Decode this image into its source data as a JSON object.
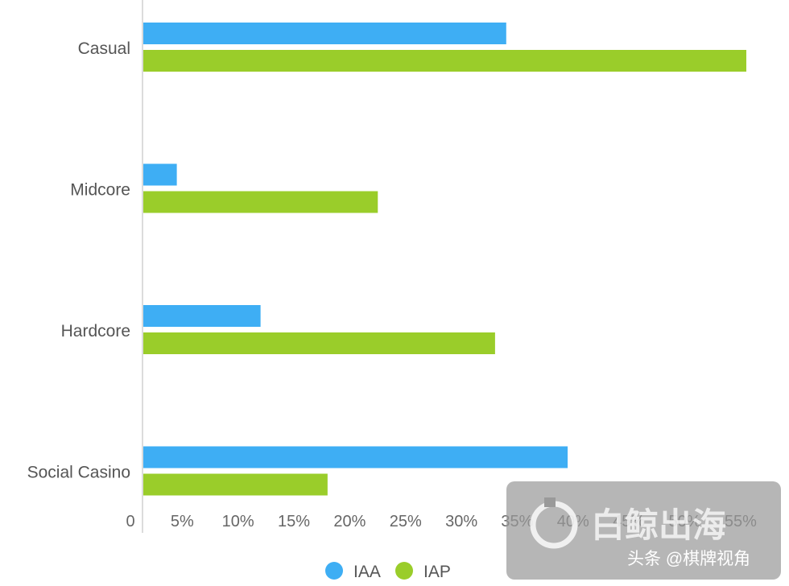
{
  "chart_data": {
    "type": "bar",
    "orientation": "horizontal",
    "categories": [
      "Casual",
      "Midcore",
      "Hardcore",
      "Social Casino"
    ],
    "series": [
      {
        "name": "IAA",
        "color": "#3EAEF4",
        "values": [
          32.5,
          3.0,
          10.5,
          38.0
        ]
      },
      {
        "name": "IAP",
        "color": "#9ACD2A",
        "values": [
          54.0,
          21.0,
          31.5,
          16.5
        ]
      }
    ],
    "x_ticks": [
      "0",
      "5%",
      "10%",
      "15%",
      "20%",
      "25%",
      "30%",
      "35%",
      "40%",
      "45%",
      "50%",
      "55%"
    ],
    "xlim": [
      0,
      55
    ],
    "legend_position": "bottom-center",
    "grid": false
  },
  "watermark": {
    "logo_text": "白鲸出海",
    "credit": "头条 @棋牌视角"
  }
}
